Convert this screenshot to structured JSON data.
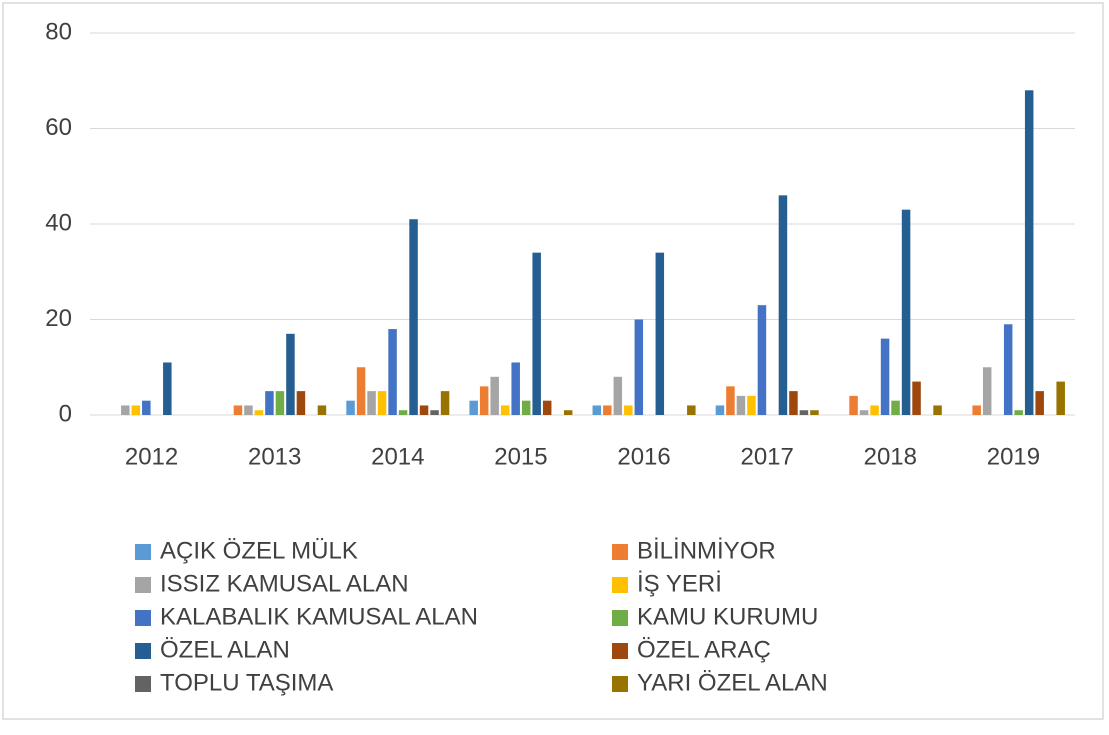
{
  "chart_data": {
    "type": "bar",
    "categories": [
      "2012",
      "2013",
      "2014",
      "2015",
      "2016",
      "2017",
      "2018",
      "2019"
    ],
    "series": [
      {
        "name": "AÇIK ÖZEL MÜLK",
        "color": "#5b9bd5",
        "values": [
          0,
          0,
          3,
          3,
          2,
          2,
          0,
          0
        ]
      },
      {
        "name": "BİLİNMİYOR",
        "color": "#ed7d31",
        "values": [
          0,
          2,
          10,
          6,
          2,
          6,
          4,
          2
        ]
      },
      {
        "name": "ISSIZ KAMUSAL ALAN",
        "color": "#a5a5a5",
        "values": [
          2,
          2,
          5,
          8,
          8,
          4,
          1,
          10
        ]
      },
      {
        "name": "İŞ YERİ",
        "color": "#ffc000",
        "values": [
          2,
          1,
          5,
          2,
          2,
          4,
          2,
          0
        ]
      },
      {
        "name": "KALABALIK KAMUSAL ALAN",
        "color": "#4472c4",
        "values": [
          3,
          5,
          18,
          11,
          20,
          23,
          16,
          19
        ]
      },
      {
        "name": "KAMU KURUMU",
        "color": "#70ad47",
        "values": [
          0,
          5,
          1,
          3,
          0,
          0,
          3,
          1
        ]
      },
      {
        "name": "ÖZEL ALAN",
        "color": "#255e91",
        "values": [
          11,
          17,
          41,
          34,
          34,
          46,
          43,
          68
        ]
      },
      {
        "name": "ÖZEL ARAÇ",
        "color": "#9e480e",
        "values": [
          0,
          5,
          2,
          3,
          0,
          5,
          7,
          5
        ]
      },
      {
        "name": "TOPLU TAŞIMA",
        "color": "#636363",
        "values": [
          0,
          0,
          1,
          0,
          0,
          1,
          0,
          0
        ]
      },
      {
        "name": "YARI ÖZEL ALAN",
        "color": "#997300",
        "values": [
          0,
          2,
          5,
          1,
          2,
          1,
          2,
          7
        ]
      }
    ],
    "ylim": [
      0,
      80
    ],
    "yticks": [
      0,
      20,
      40,
      60,
      80
    ],
    "grid": true,
    "legend": "bottom"
  }
}
